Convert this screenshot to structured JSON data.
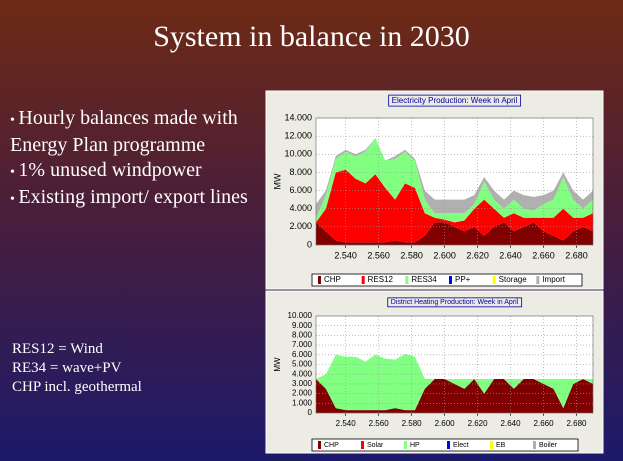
{
  "slide": {
    "title": "System in balance in 2030",
    "bullets": [
      "Hourly balances made with Energy Plan programme",
      "1% unused windpower",
      "Existing import/ export lines"
    ],
    "notes": [
      "RES12 = Wind",
      "RE34 = wave+PV",
      "CHP incl. geothermal"
    ]
  },
  "chart_data": [
    {
      "type": "stacked_area",
      "title": "Electricity Production: Week in April",
      "y_label": "MW",
      "grid": true,
      "x": [
        2522,
        2528,
        2534,
        2540,
        2546,
        2552,
        2558,
        2564,
        2570,
        2576,
        2582,
        2588,
        2594,
        2600,
        2606,
        2612,
        2618,
        2624,
        2630,
        2636,
        2642,
        2648,
        2654,
        2660,
        2666,
        2672,
        2678,
        2684,
        2690
      ],
      "xlim": [
        2522,
        2690
      ],
      "xticks": [
        {
          "value": 2540,
          "label": "2.540"
        },
        {
          "value": 2560,
          "label": "2.560"
        },
        {
          "value": 2580,
          "label": "2.580"
        },
        {
          "value": 2600,
          "label": "2.600"
        },
        {
          "value": 2620,
          "label": "2.620"
        },
        {
          "value": 2640,
          "label": "2.640"
        },
        {
          "value": 2660,
          "label": "2.660"
        },
        {
          "value": 2680,
          "label": "2.680"
        }
      ],
      "ylim": [
        0,
        14000
      ],
      "yticks": [
        0,
        {
          "value": 2000,
          "label": "2.000"
        },
        {
          "value": 4000,
          "label": "4.000"
        },
        {
          "value": 6000,
          "label": "6.000"
        },
        {
          "value": 8000,
          "label": "8.000"
        },
        {
          "value": 10000,
          "label": "10.000"
        },
        {
          "value": 12000,
          "label": "12.000"
        },
        {
          "value": 14000,
          "label": "14.000"
        }
      ],
      "series": [
        {
          "name": "CHP",
          "color": "#800000",
          "values": [
            2500,
            1500,
            500,
            300,
            300,
            300,
            300,
            300,
            500,
            300,
            300,
            1000,
            2500,
            2500,
            2000,
            1500,
            2000,
            1000,
            2000,
            2500,
            1500,
            2000,
            2500,
            1500,
            1000,
            500,
            1500,
            2000,
            1500
          ]
        },
        {
          "name": "RES12",
          "color": "#ff0000",
          "values": [
            0,
            2500,
            7500,
            8000,
            7000,
            6500,
            7500,
            6000,
            4500,
            6500,
            6000,
            2500,
            500,
            300,
            500,
            1200,
            2000,
            4000,
            2000,
            500,
            2000,
            1000,
            500,
            1500,
            2000,
            3500,
            1500,
            1000,
            2000
          ]
        },
        {
          "name": "RES34",
          "color": "#80ff80",
          "values": [
            500,
            1500,
            1500,
            2000,
            2500,
            3500,
            4000,
            3000,
            4500,
            3500,
            3000,
            1500,
            500,
            700,
            1000,
            800,
            500,
            2000,
            1000,
            1000,
            1500,
            1000,
            800,
            1500,
            2000,
            3500,
            2000,
            1000,
            1500
          ]
        },
        {
          "name": "PP+",
          "color": "#0000ff",
          "values": [
            0,
            0,
            0,
            0,
            0,
            0,
            0,
            0,
            0,
            0,
            0,
            0,
            0,
            0,
            0,
            0,
            0,
            0,
            0,
            0,
            0,
            0,
            0,
            0,
            0,
            0,
            0,
            0,
            0
          ]
        },
        {
          "name": "Storage",
          "color": "#ffff00",
          "values": [
            0,
            0,
            0,
            0,
            0,
            0,
            0,
            0,
            0,
            0,
            0,
            0,
            0,
            0,
            0,
            0,
            0,
            0,
            0,
            0,
            0,
            0,
            0,
            0,
            0,
            0,
            0,
            0,
            0
          ]
        },
        {
          "name": "Import",
          "color": "#b0b0b0",
          "values": [
            1500,
            500,
            300,
            200,
            200,
            200,
            0,
            0,
            300,
            200,
            200,
            1000,
            1500,
            1500,
            1500,
            1500,
            1000,
            500,
            1000,
            1000,
            1000,
            1500,
            1500,
            1000,
            1000,
            500,
            1000,
            1000,
            1000
          ]
        }
      ]
    },
    {
      "type": "stacked_area",
      "title": "District Heating Production: Week in April",
      "y_label": "MW",
      "grid": true,
      "x": [
        2522,
        2528,
        2534,
        2540,
        2546,
        2552,
        2558,
        2564,
        2570,
        2576,
        2582,
        2588,
        2594,
        2600,
        2606,
        2612,
        2618,
        2624,
        2630,
        2636,
        2642,
        2648,
        2654,
        2660,
        2666,
        2672,
        2678,
        2684,
        2690
      ],
      "xlim": [
        2522,
        2690
      ],
      "xticks": [
        {
          "value": 2540,
          "label": "2.540"
        },
        {
          "value": 2560,
          "label": "2.560"
        },
        {
          "value": 2580,
          "label": "2.580"
        },
        {
          "value": 2600,
          "label": "2.600"
        },
        {
          "value": 2620,
          "label": "2.620"
        },
        {
          "value": 2640,
          "label": "2.640"
        },
        {
          "value": 2660,
          "label": "2.660"
        },
        {
          "value": 2680,
          "label": "2.680"
        }
      ],
      "ylim": [
        0,
        10000
      ],
      "yticks": [
        0,
        {
          "value": 1000,
          "label": "1.000"
        },
        {
          "value": 2000,
          "label": "2.000"
        },
        {
          "value": 3000,
          "label": "3.000"
        },
        {
          "value": 4000,
          "label": "4.000"
        },
        {
          "value": 5000,
          "label": "5.000"
        },
        {
          "value": 6000,
          "label": "6.000"
        },
        {
          "value": 7000,
          "label": "7.000"
        },
        {
          "value": 8000,
          "label": "8.000"
        },
        {
          "value": 9000,
          "label": "9.000"
        },
        {
          "value": 10000,
          "label": "10.000"
        }
      ],
      "series": [
        {
          "name": "CHP",
          "color": "#800000",
          "values": [
            3500,
            2500,
            500,
            300,
            300,
            300,
            300,
            300,
            500,
            300,
            300,
            2500,
            3500,
            3500,
            3000,
            2500,
            3500,
            2000,
            3500,
            3500,
            2500,
            3500,
            3500,
            3000,
            2500,
            500,
            3000,
            3500,
            3000
          ]
        },
        {
          "name": "Solar",
          "color": "#ff0000",
          "values": [
            0,
            0,
            0,
            0,
            0,
            0,
            0,
            0,
            0,
            0,
            0,
            0,
            0,
            0,
            0,
            0,
            0,
            0,
            0,
            0,
            0,
            0,
            0,
            0,
            0,
            0,
            0,
            0,
            0
          ]
        },
        {
          "name": "HP",
          "color": "#80ff80",
          "values": [
            0,
            1500,
            5500,
            5500,
            5500,
            5000,
            5700,
            5300,
            5000,
            5800,
            5500,
            1000,
            0,
            0,
            500,
            1000,
            0,
            1500,
            0,
            0,
            1000,
            0,
            0,
            500,
            1000,
            3000,
            500,
            0,
            500
          ]
        },
        {
          "name": "Elect",
          "color": "#0000ff",
          "values": [
            0,
            0,
            0,
            0,
            0,
            0,
            0,
            0,
            0,
            0,
            0,
            0,
            0,
            0,
            0,
            0,
            0,
            0,
            0,
            0,
            0,
            0,
            0,
            0,
            0,
            0,
            0,
            0,
            0
          ]
        },
        {
          "name": "EB",
          "color": "#ffff00",
          "values": [
            0,
            0,
            0,
            0,
            0,
            0,
            0,
            0,
            0,
            0,
            0,
            0,
            0,
            0,
            0,
            0,
            0,
            0,
            0,
            0,
            0,
            0,
            0,
            0,
            0,
            0,
            0,
            0,
            0
          ]
        },
        {
          "name": "Boiler",
          "color": "#b0b0b0",
          "values": [
            0,
            0,
            0,
            0,
            0,
            0,
            0,
            0,
            0,
            0,
            0,
            0,
            0,
            0,
            0,
            0,
            0,
            0,
            0,
            0,
            0,
            0,
            0,
            0,
            0,
            0,
            0,
            0,
            0
          ]
        }
      ]
    }
  ]
}
